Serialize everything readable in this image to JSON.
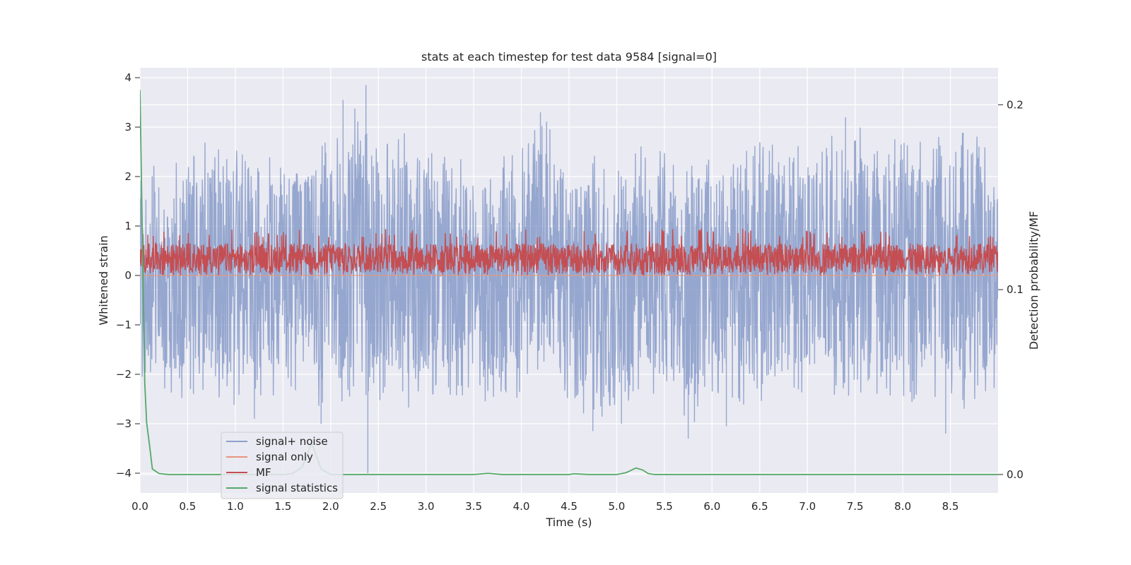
{
  "chart_data": {
    "type": "line",
    "title": "stats at each timestep for test data 9584 [signal=0]",
    "xlabel": "Time (s)",
    "ylabel": "Whitened strain",
    "y2label": "Detection probability/MF",
    "xlim": [
      0.0,
      9.0
    ],
    "ylim": [
      -4.4,
      4.2
    ],
    "y2lim": [
      -0.01,
      0.22
    ],
    "x_ticks": [
      "0.0",
      "0.5",
      "1.0",
      "1.5",
      "2.0",
      "2.5",
      "3.0",
      "3.5",
      "4.0",
      "4.5",
      "5.0",
      "5.5",
      "6.0",
      "6.5",
      "7.0",
      "7.5",
      "8.0",
      "8.5"
    ],
    "x_tick_values": [
      0.0,
      0.5,
      1.0,
      1.5,
      2.0,
      2.5,
      3.0,
      3.5,
      4.0,
      4.5,
      5.0,
      5.5,
      6.0,
      6.5,
      7.0,
      7.5,
      8.0,
      8.5
    ],
    "y_ticks": [
      "−4",
      "−3",
      "−2",
      "−1",
      "0",
      "1",
      "2",
      "3",
      "4"
    ],
    "y_tick_values": [
      -4,
      -3,
      -2,
      -1,
      0,
      1,
      2,
      3,
      4
    ],
    "y2_ticks": [
      "0.0",
      "0.1",
      "0.2"
    ],
    "y2_tick_values": [
      0.0,
      0.1,
      0.2
    ],
    "legend_position": "lower-left",
    "grid": true,
    "series": [
      {
        "name": "signal+ noise",
        "axis": "left",
        "color": "#8da0cb",
        "description": "dense noise trace",
        "envelope": {
          "x": [
            0.0,
            0.25,
            0.5,
            0.75,
            1.0,
            1.25,
            1.5,
            1.75,
            2.0,
            2.25,
            2.5,
            2.75,
            3.0,
            3.25,
            3.5,
            3.75,
            4.0,
            4.25,
            4.5,
            4.75,
            5.0,
            5.25,
            5.5,
            5.75,
            6.0,
            6.25,
            6.5,
            6.75,
            7.0,
            7.25,
            7.5,
            7.75,
            8.0,
            8.25,
            8.5,
            8.75,
            9.0
          ],
          "upper": [
            2.3,
            2.3,
            2.4,
            2.9,
            2.6,
            2.4,
            2.6,
            2.7,
            2.7,
            3.5,
            2.6,
            3.0,
            2.6,
            2.5,
            2.5,
            2.4,
            2.7,
            3.3,
            2.3,
            2.6,
            2.3,
            2.7,
            2.5,
            2.4,
            2.6,
            2.5,
            2.8,
            2.7,
            2.6,
            2.9,
            3.1,
            3.0,
            2.8,
            2.7,
            2.9,
            2.9,
            2.3
          ],
          "lower": [
            -2.6,
            -2.5,
            -2.5,
            -2.3,
            -2.9,
            -2.6,
            -2.5,
            -2.4,
            -2.9,
            -2.5,
            -2.6,
            -2.7,
            -2.6,
            -2.5,
            -2.4,
            -2.8,
            -2.4,
            -2.3,
            -2.5,
            -3.0,
            -2.7,
            -2.5,
            -2.4,
            -3.2,
            -2.4,
            -2.6,
            -2.7,
            -2.5,
            -2.4,
            -2.5,
            -2.5,
            -2.7,
            -2.6,
            -2.5,
            -2.6,
            -3.0,
            -2.2
          ]
        },
        "spikes": [
          {
            "x": 2.13,
            "y": 3.55
          },
          {
            "x": 2.37,
            "y": 3.85
          },
          {
            "x": 2.39,
            "y": -4.0
          },
          {
            "x": 1.2,
            "y": -2.9
          },
          {
            "x": 1.9,
            "y": -3.0
          },
          {
            "x": 4.75,
            "y": -3.15
          },
          {
            "x": 5.75,
            "y": -3.3
          },
          {
            "x": 8.45,
            "y": -3.2
          },
          {
            "x": 4.2,
            "y": 3.3
          },
          {
            "x": 7.4,
            "y": 3.2
          },
          {
            "x": 5.05,
            "y": -3.0
          },
          {
            "x": 6.15,
            "y": -3.05
          }
        ]
      },
      {
        "name": "signal only",
        "axis": "left",
        "color": "#e8967a",
        "x": [
          0.0,
          9.0
        ],
        "values": [
          0.0,
          0.0
        ]
      },
      {
        "name": "MF",
        "axis": "left",
        "color": "#c44e52",
        "range": [
          0.0,
          0.95
        ],
        "typical": [
          0.05,
          0.65
        ]
      },
      {
        "name": "signal statistics",
        "axis": "right",
        "color": "#55a868",
        "x": [
          0.0,
          0.05,
          0.07,
          0.1,
          0.13,
          0.2,
          0.3,
          0.5,
          1.0,
          1.5,
          1.6,
          1.7,
          1.75,
          1.8,
          1.85,
          1.9,
          2.0,
          2.5,
          3.0,
          3.5,
          3.65,
          3.8,
          4.0,
          4.5,
          4.55,
          4.7,
          5.0,
          5.1,
          5.2,
          5.27,
          5.33,
          5.4,
          6.0,
          7.0,
          8.0,
          9.0
        ],
        "values": [
          0.208,
          0.05,
          0.028,
          0.016,
          0.003,
          0.0005,
          0.0,
          0.0,
          0.0,
          0.0,
          0.0005,
          0.004,
          0.01,
          0.017,
          0.01,
          0.003,
          0.0,
          0.0,
          0.0,
          0.0,
          0.0006,
          0.0,
          0.0,
          0.0,
          0.0004,
          0.0,
          0.0,
          0.001,
          0.0035,
          0.0025,
          0.0005,
          0.0,
          0.0,
          0.0,
          0.0,
          0.0
        ]
      }
    ]
  }
}
